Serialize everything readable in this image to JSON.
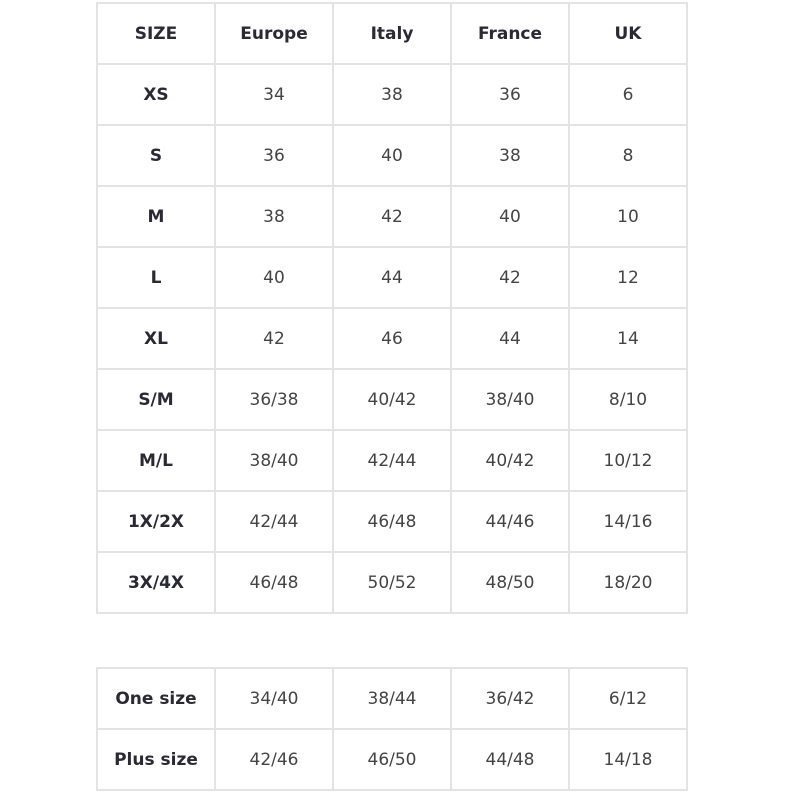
{
  "main_table": {
    "headers": [
      "SIZE",
      "Europe",
      "Italy",
      "France",
      "UK"
    ],
    "rows": [
      [
        "XS",
        "34",
        "38",
        "36",
        "6"
      ],
      [
        "S",
        "36",
        "40",
        "38",
        "8"
      ],
      [
        "M",
        "38",
        "42",
        "40",
        "10"
      ],
      [
        "L",
        "40",
        "44",
        "42",
        "12"
      ],
      [
        "XL",
        "42",
        "46",
        "44",
        "14"
      ],
      [
        "S/M",
        "36/38",
        "40/42",
        "38/40",
        "8/10"
      ],
      [
        "M/L",
        "38/40",
        "42/44",
        "40/42",
        "10/12"
      ],
      [
        "1X/2X",
        "42/44",
        "46/48",
        "44/46",
        "14/16"
      ],
      [
        "3X/4X",
        "46/48",
        "50/52",
        "48/50",
        "18/20"
      ]
    ]
  },
  "extra_table": {
    "rows": [
      [
        "One size",
        "34/40",
        "38/44",
        "36/42",
        "6/12"
      ],
      [
        "Plus size",
        "42/46",
        "46/50",
        "44/48",
        "14/18"
      ]
    ]
  }
}
